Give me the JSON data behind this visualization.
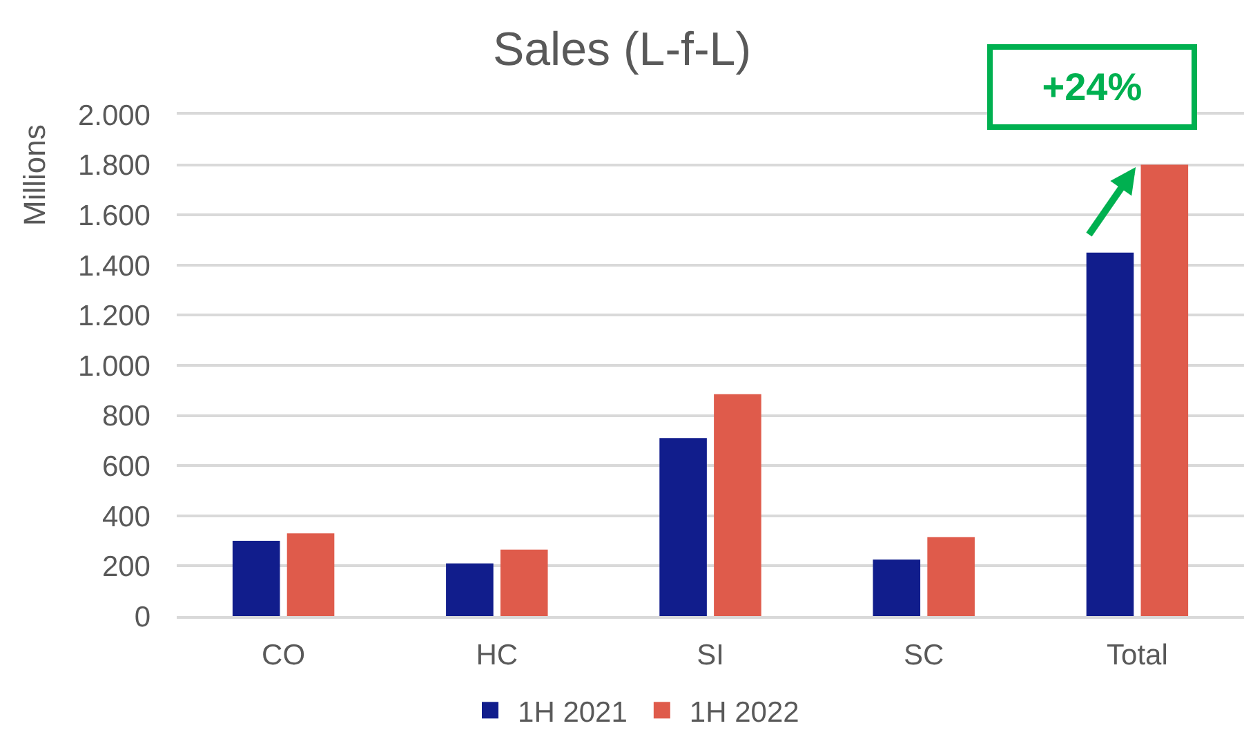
{
  "chart_data": {
    "type": "bar",
    "title": "Sales (L-f-L)",
    "ylabel": "Millions",
    "categories": [
      "CO",
      "HC",
      "SI",
      "SC",
      "Total"
    ],
    "series": [
      {
        "name": "1H 2021",
        "color": "#111d8c",
        "values": [
          300,
          210,
          710,
          225,
          1450
        ]
      },
      {
        "name": "1H 2022",
        "color": "#df5b4b",
        "values": [
          330,
          265,
          885,
          315,
          1800
        ]
      }
    ],
    "ylim": [
      0,
      2000
    ],
    "yticks": [
      0,
      200,
      400,
      600,
      800,
      {
        "value": 1000,
        "label": "1.000"
      },
      {
        "value": 1200,
        "label": "1.200"
      },
      {
        "value": 1400,
        "label": "1.400"
      },
      {
        "value": 1600,
        "label": "1.600"
      },
      {
        "value": 1800,
        "label": "1.800"
      },
      {
        "value": 2000,
        "label": "2.000"
      }
    ],
    "annotations": [
      {
        "text": "+24%",
        "x": "Total",
        "y": 1800
      }
    ],
    "grid": "y",
    "legend": "bottom"
  }
}
